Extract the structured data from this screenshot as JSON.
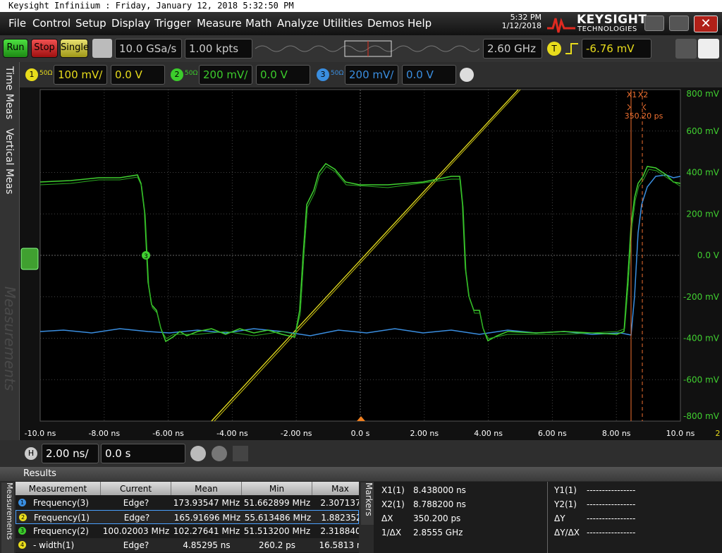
{
  "window_title": "Keysight Infiniium : Friday, January 12, 2018 5:32:50 PM",
  "menu": [
    "File",
    "Control",
    "Setup",
    "Display",
    "Trigger",
    "Measure",
    "Math",
    "Analyze",
    "Utilities",
    "Demos",
    "Help"
  ],
  "clock": {
    "time": "5:32 PM",
    "date": "1/12/2018"
  },
  "brand": {
    "name": "KEYSIGHT",
    "tagline": "TECHNOLOGIES"
  },
  "acquisition": {
    "run": "Run",
    "stop": "Stop",
    "single": "Single",
    "sample_rate": "10.0 GSa/s",
    "memory_depth": "1.00 kpts",
    "bandwidth": "2.60 GHz"
  },
  "trigger": {
    "badge": "T",
    "level": "-6.76 mV"
  },
  "channels": [
    {
      "number": "1",
      "impedance": "50Ω",
      "scale": "100 mV/",
      "offset": "0.0 V",
      "color": "#e8dc1c"
    },
    {
      "number": "2",
      "impedance": "50Ω",
      "scale": "200 mV/",
      "offset": "0.0 V",
      "color": "#3ccc2c"
    },
    {
      "number": "3",
      "impedance": "50Ω",
      "scale": "200 mV/",
      "offset": "0.0 V",
      "color": "#3a8ee0"
    }
  ],
  "side_tabs": [
    "Time Meas",
    "Vertical Meas",
    "Measurements"
  ],
  "display": {
    "y_labels": [
      "800 mV",
      "600 mV",
      "400 mV",
      "200 mV",
      "0.0 V",
      "-200 mV",
      "-400 mV",
      "-600 mV",
      "-800 mV"
    ],
    "x_labels": [
      "-10.0 ns",
      "-8.00 ns",
      "-6.00 ns",
      "-4.00 ns",
      "-2.00 ns",
      "0.0 s",
      "2.00 ns",
      "4.00 ns",
      "6.00 ns",
      "8.00 ns",
      "10.0 ns"
    ],
    "x_overflow": "2",
    "marker_x1": "X1",
    "marker_x2": "X2",
    "marker_delta": "350.20 ps",
    "waveform_tag": "3"
  },
  "timebase": {
    "badge": "H",
    "scale": "2.00 ns/",
    "position": "0.0 s"
  },
  "results": {
    "title": "Results",
    "tab": "Measurements",
    "columns": [
      "Measurement",
      "Current",
      "Mean",
      "Min",
      "Max"
    ],
    "rows": [
      {
        "badge": "1",
        "cells": [
          "Frequency(3)",
          "Edge?",
          "173.93547 MHz",
          "51.662899 MHz",
          "2.307137"
        ]
      },
      {
        "badge": "2",
        "cells": [
          "Frequency(1)",
          "Edge?",
          "165.91696 MHz",
          "55.613486 MHz",
          "1.882352"
        ]
      },
      {
        "badge": "3",
        "cells": [
          "Frequency(2)",
          "100.02003 MHz",
          "102.27641 MHz",
          "51.513200 MHz",
          "2.318840"
        ]
      },
      {
        "badge": "4",
        "cells": [
          "- width(1)",
          "Edge?",
          "4.85295 ns",
          "260.2 ps",
          "16.5813 n"
        ]
      }
    ]
  },
  "markers_panel": {
    "tab": "Markers",
    "x_rows": [
      [
        "X1(1)",
        "8.438000 ns"
      ],
      [
        "X2(1)",
        "8.788200 ns"
      ],
      [
        "ΔX",
        "350.200 ps"
      ],
      [
        "1/ΔX",
        "2.8555 GHz"
      ]
    ],
    "y_rows": [
      [
        "Y1(1)",
        "----------------"
      ],
      [
        "Y2(1)",
        "----------------"
      ],
      [
        "ΔY",
        "----------------"
      ],
      [
        "ΔY/ΔX",
        "----------------"
      ]
    ]
  }
}
